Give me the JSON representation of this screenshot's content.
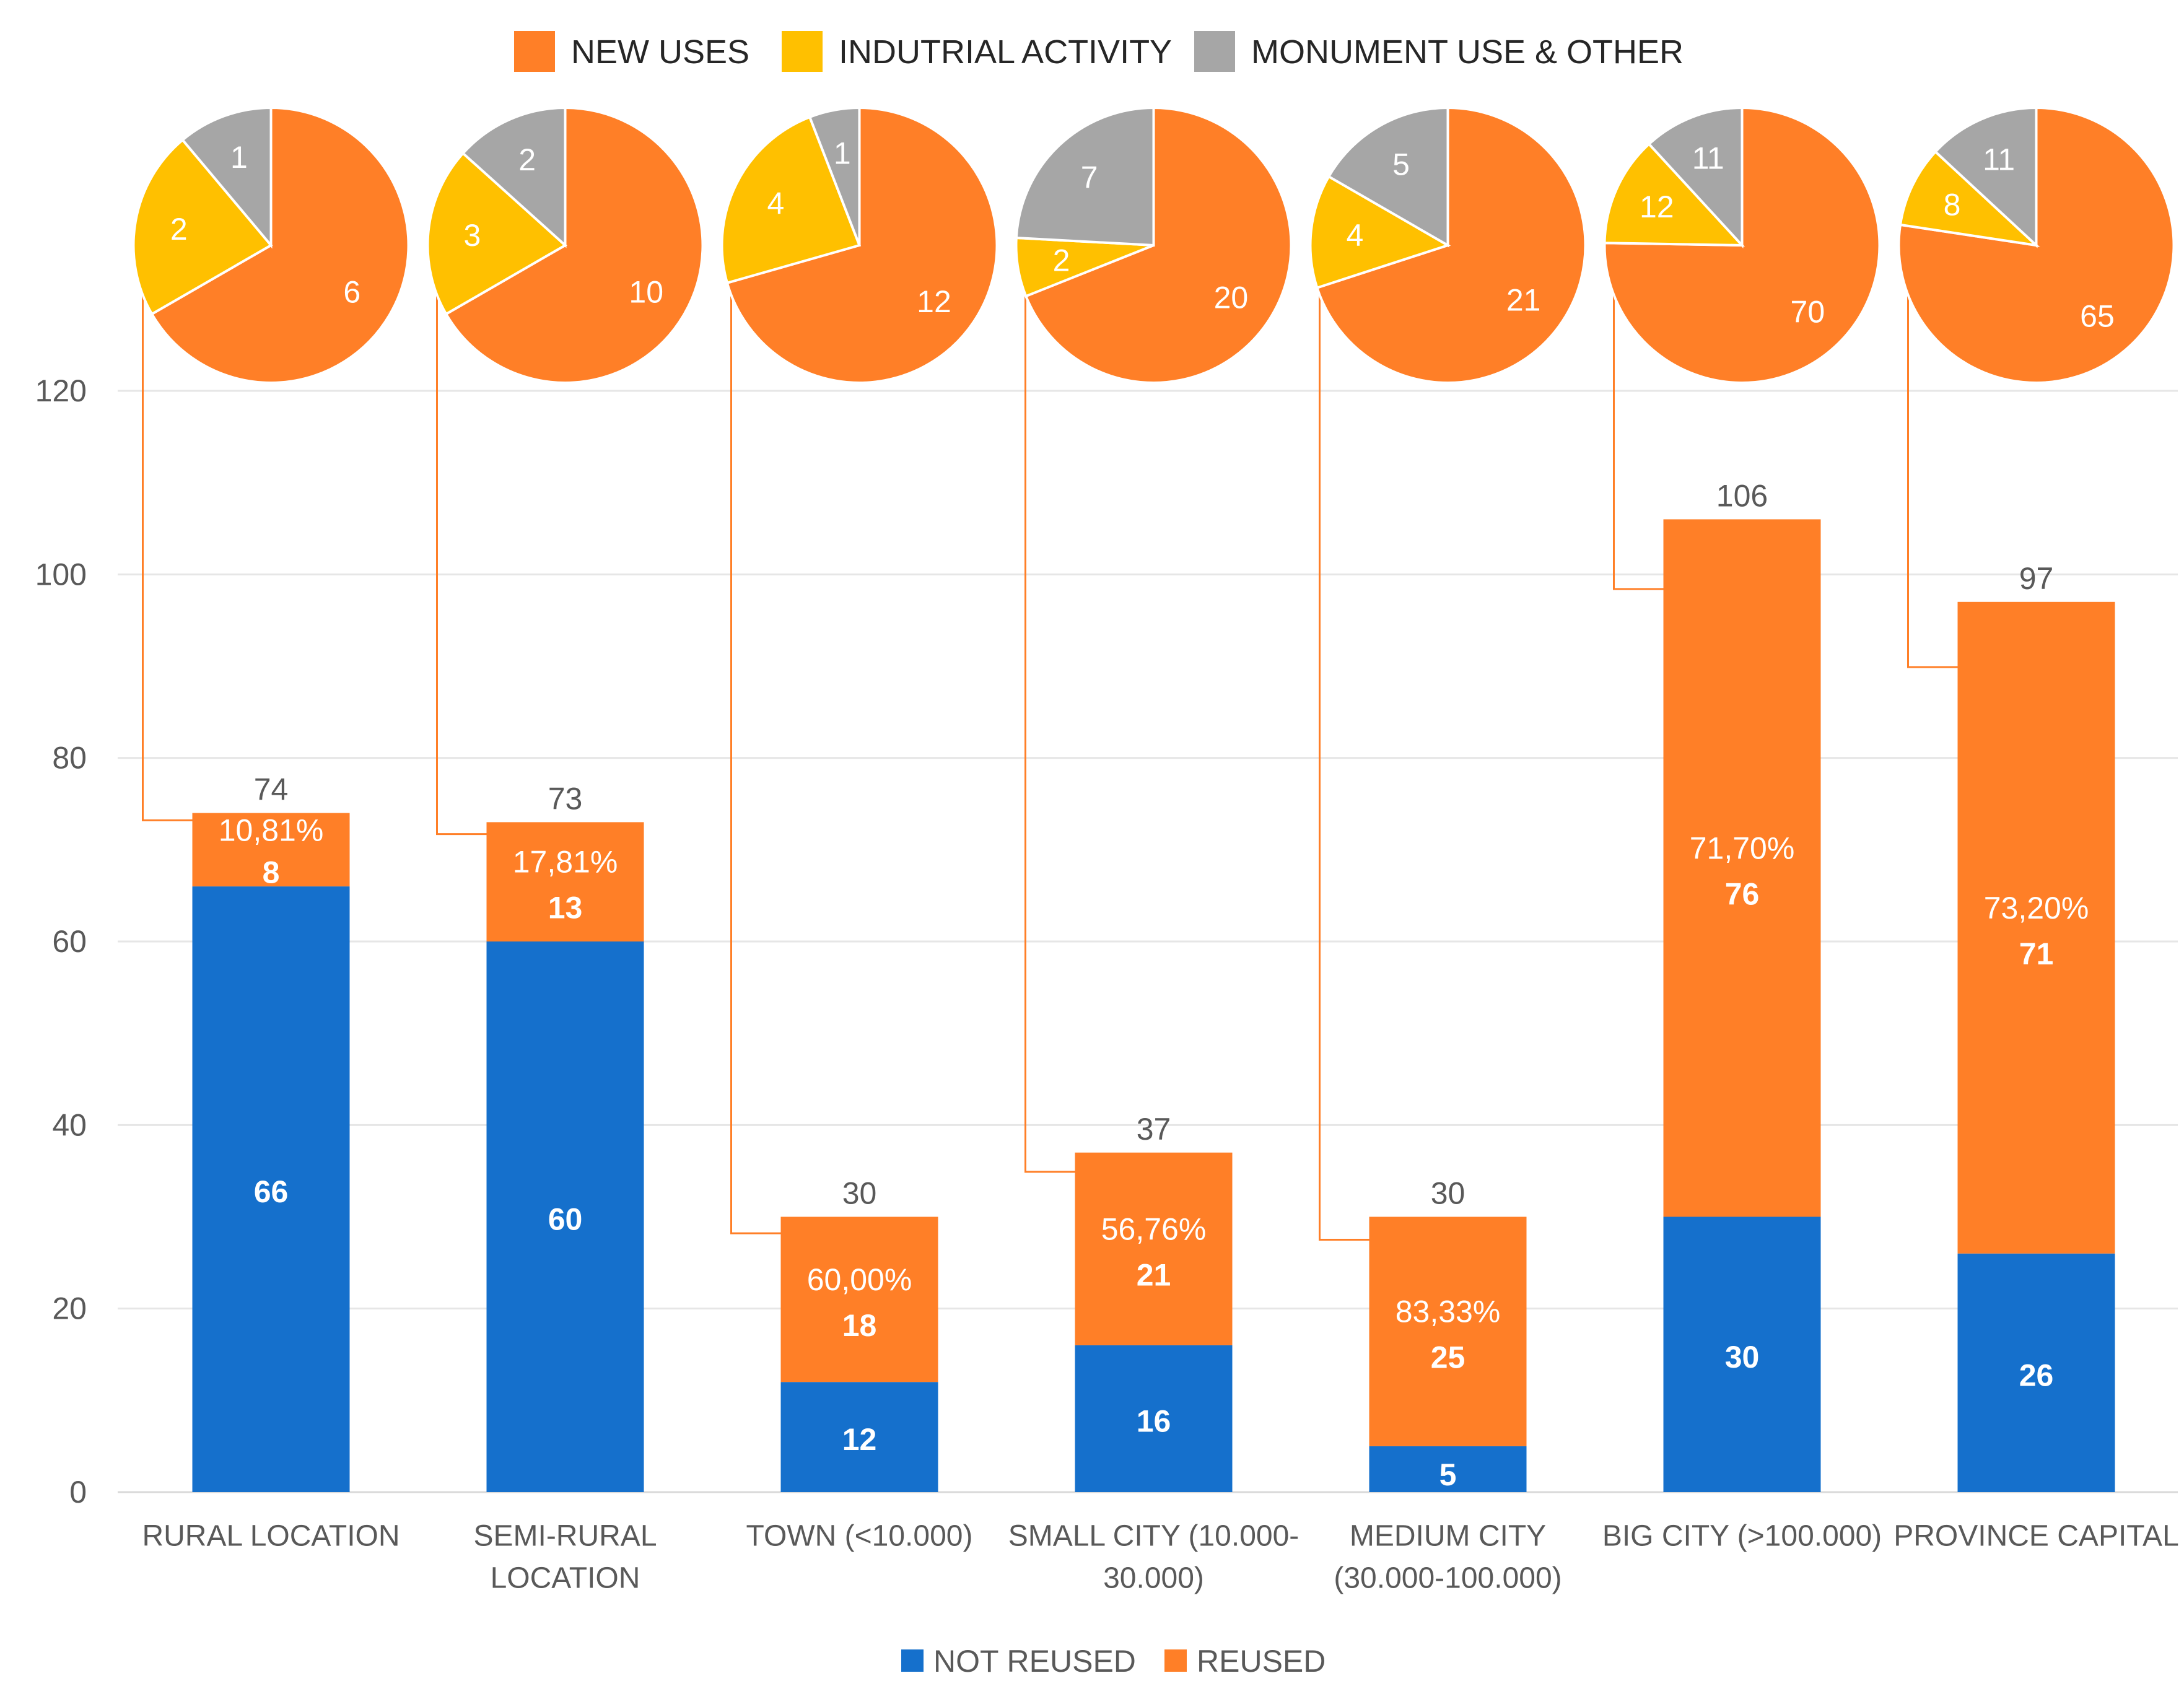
{
  "colors": {
    "not_reused": "#1570CC",
    "reused": "#FF7F27",
    "new_uses": "#FF7F27",
    "industrial": "#FFC000",
    "monument": "#A6A6A6",
    "axis_text": "#595959",
    "grid": "#E6E6E6",
    "leader": "#FF7F27"
  },
  "chart_data": [
    {
      "type": "bar",
      "stacked": true,
      "categories": [
        "RURAL LOCATION",
        "SEMI-RURAL LOCATION",
        "TOWN (<10.000)",
        "SMALL CITY (10.000-30.000)",
        "MEDIUM CITY (30.000-100.000)",
        "BIG CITY (>100.000)",
        "PROVINCE CAPITAL"
      ],
      "category_label_lines": [
        [
          "RURAL LOCATION"
        ],
        [
          "SEMI-RURAL",
          "LOCATION"
        ],
        [
          "TOWN (<10.000)"
        ],
        [
          "SMALL CITY (10.000-",
          "30.000)"
        ],
        [
          "MEDIUM CITY",
          "(30.000-100.000)"
        ],
        [
          "BIG CITY (>100.000)"
        ],
        [
          "PROVINCE CAPITAL"
        ]
      ],
      "series": [
        {
          "name": "NOT REUSED",
          "values": [
            66,
            60,
            12,
            16,
            5,
            30,
            26
          ]
        },
        {
          "name": "REUSED",
          "values": [
            8,
            13,
            18,
            21,
            25,
            76,
            71
          ]
        }
      ],
      "totals": [
        74,
        73,
        30,
        37,
        30,
        106,
        97
      ],
      "reused_percent_labels": [
        "10,81%",
        "17,81%",
        "60,00%",
        "56,76%",
        "83,33%",
        "71,70%",
        "73,20%"
      ],
      "ylim": [
        0,
        120
      ],
      "yticks": [
        0,
        20,
        40,
        60,
        80,
        100,
        120
      ],
      "grid": true,
      "legend": {
        "position": "bottom",
        "entries": [
          "NOT REUSED",
          "REUSED"
        ]
      }
    },
    {
      "type": "pie",
      "legend": {
        "position": "top",
        "entries": [
          "NEW USES",
          "INDUTRIAL ACTIVITY",
          "MONUMENT USE & OTHER"
        ]
      },
      "note": "One pie per bar category, breaking down the REUSED portion",
      "pies": [
        {
          "category": "RURAL LOCATION",
          "new_uses": 6,
          "industrial": 2,
          "monument": 1
        },
        {
          "category": "SEMI-RURAL LOCATION",
          "new_uses": 10,
          "industrial": 3,
          "monument": 2
        },
        {
          "category": "TOWN (<10.000)",
          "new_uses": 12,
          "industrial": 4,
          "monument": 1
        },
        {
          "category": "SMALL CITY (10.000-30.000)",
          "new_uses": 20,
          "industrial": 2,
          "monument": 7
        },
        {
          "category": "MEDIUM CITY (30.000-100.000)",
          "new_uses": 21,
          "industrial": 4,
          "monument": 5
        },
        {
          "category": "BIG CITY (>100.000)",
          "new_uses": 70,
          "industrial": 12,
          "monument": 11
        },
        {
          "category": "PROVINCE CAPITAL",
          "new_uses": 65,
          "industrial": 8,
          "monument": 11
        }
      ]
    }
  ]
}
